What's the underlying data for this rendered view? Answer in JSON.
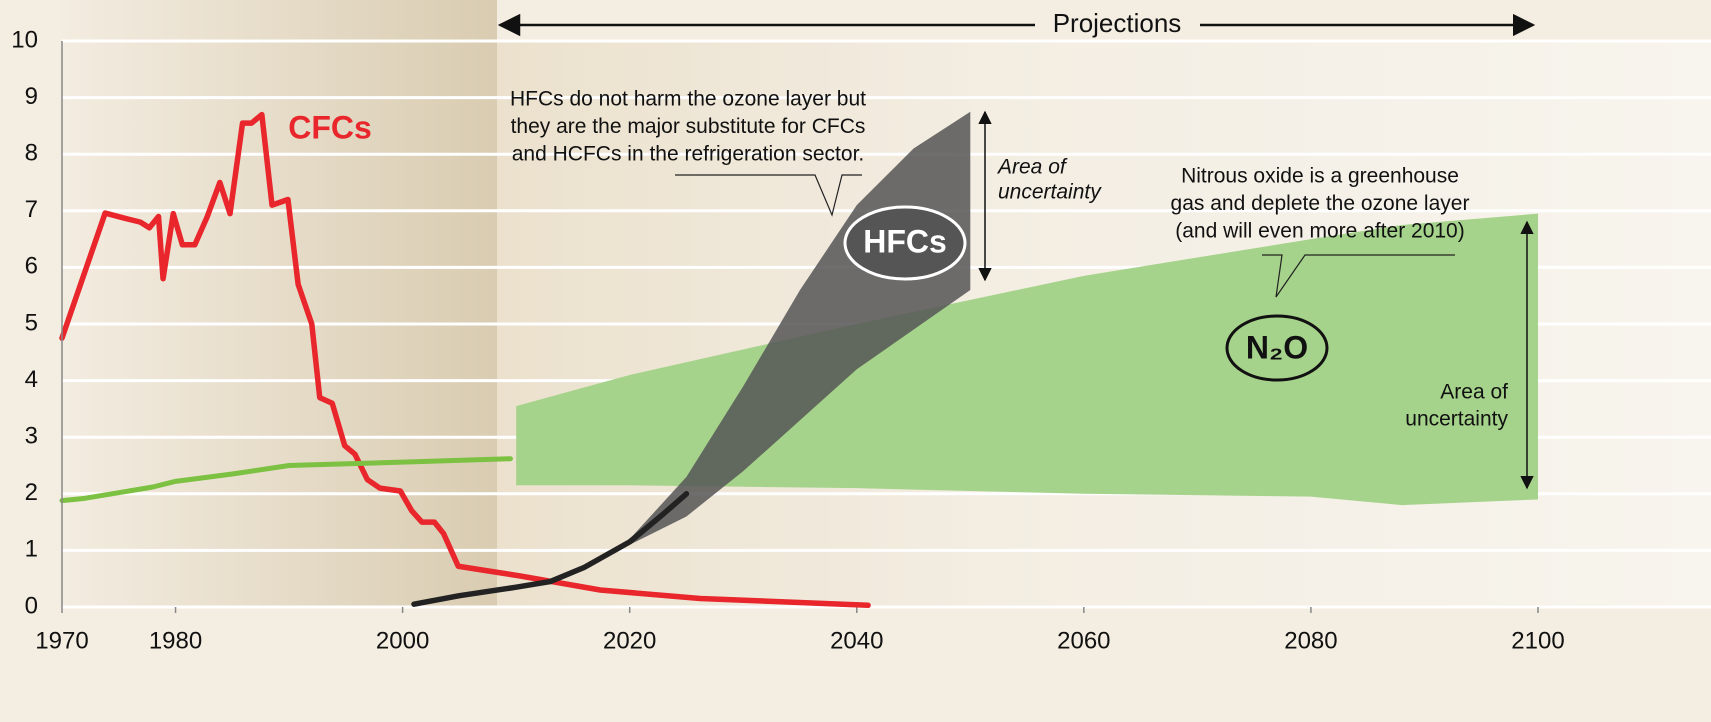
{
  "chart_data": {
    "type": "line",
    "xlim": [
      1970,
      2100
    ],
    "ylim": [
      0,
      10
    ],
    "xticks": [
      1970,
      1980,
      2000,
      2020,
      2040,
      2060,
      2080,
      2100
    ],
    "yticks": [
      0,
      1,
      2,
      3,
      4,
      5,
      6,
      7,
      8,
      9,
      10
    ],
    "grid": true,
    "projection_label": "Projections",
    "series": [
      {
        "name": "CFCs",
        "color": "#e8262b",
        "x": [
          1970,
          1973.8,
          1975.5,
          1976.9,
          1977.7,
          1978.5,
          1978.9,
          1979.8,
          1980.6,
          1981.7,
          1982.8,
          1983.9,
          1984.8,
          1985.9,
          1986.7,
          1987.6,
          1988.5,
          1989.9,
          1990.8,
          1992,
          1992.7,
          1993.8,
          1994.9,
          1995.8,
          1996.9,
          1998,
          1999.8,
          2000.8,
          2001.7,
          2002.8,
          2003.6,
          2004.9,
          2010.3,
          2017.4,
          2026.2,
          2041
        ],
        "values": [
          4.75,
          6.96,
          6.87,
          6.8,
          6.7,
          6.9,
          5.8,
          6.95,
          6.4,
          6.4,
          6.9,
          7.5,
          6.95,
          8.55,
          8.55,
          8.7,
          7.1,
          7.2,
          5.7,
          5.0,
          3.7,
          3.6,
          2.85,
          2.7,
          2.25,
          2.1,
          2.05,
          1.7,
          1.5,
          1.5,
          1.3,
          0.72,
          0.55,
          0.3,
          0.15,
          0.03
        ]
      },
      {
        "name": "N₂O",
        "color": "#7cc142",
        "x": [
          1970,
          1972,
          1975,
          1978,
          1980,
          1985,
          1990,
          2000,
          2009.5
        ],
        "values": [
          1.88,
          1.92,
          2.02,
          2.12,
          2.22,
          2.35,
          2.5,
          2.56,
          2.62
        ],
        "band_color": "#a6d38b",
        "band": {
          "x": [
            2010,
            2020,
            2040,
            2060,
            2080,
            2088,
            2100
          ],
          "upper": [
            3.55,
            4.1,
            5.0,
            5.85,
            6.5,
            6.75,
            6.95
          ],
          "lower": [
            2.15,
            2.15,
            2.1,
            2.0,
            1.95,
            1.8,
            1.9
          ]
        }
      },
      {
        "name": "HFCs",
        "color": "#222222",
        "x": [
          2001,
          2005,
          2010,
          2013,
          2016,
          2020,
          2023,
          2025
        ],
        "values": [
          0.05,
          0.2,
          0.35,
          0.45,
          0.7,
          1.15,
          1.65,
          2.0
        ],
        "band_color": "#555555",
        "band": {
          "x": [
            2016,
            2020,
            2025,
            2030,
            2035,
            2040,
            2045,
            2050
          ],
          "upper": [
            0.7,
            1.2,
            2.3,
            3.9,
            5.6,
            7.1,
            8.1,
            8.75
          ],
          "lower": [
            0.7,
            1.1,
            1.6,
            2.4,
            3.3,
            4.2,
            4.9,
            5.6
          ]
        }
      }
    ],
    "annotations": [
      {
        "lines": [
          "HFCs do not harm the ozone layer but",
          "they are the major substitute for CFCs",
          "and HCFCs in the refrigeration sector."
        ]
      },
      {
        "lines": [
          "Area of",
          "uncertainty"
        ]
      },
      {
        "lines": [
          "Nitrous oxide is a greenhouse",
          "gas and deplete the ozone layer",
          "(and will even more after 2010)"
        ]
      },
      {
        "lines": [
          "Area of",
          "uncertainty"
        ]
      }
    ]
  }
}
